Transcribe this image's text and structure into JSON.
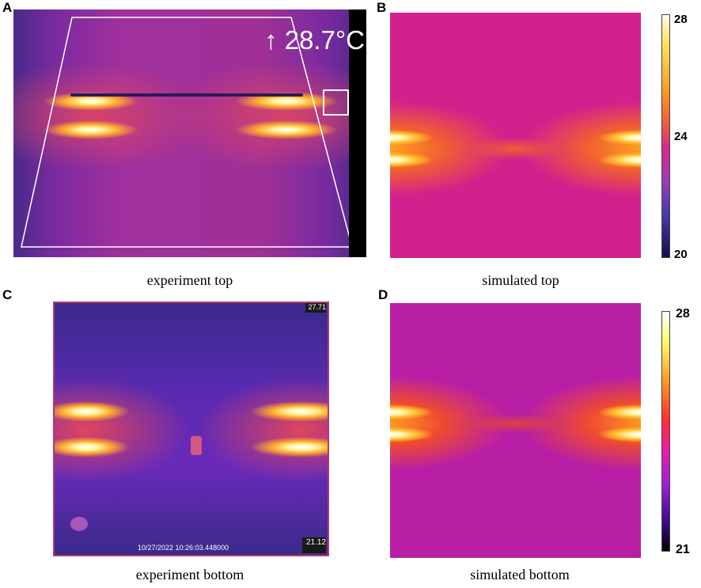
{
  "panels": {
    "a": {
      "letter": "A",
      "readout": "↑ 28.7°C"
    },
    "b": {
      "letter": "B"
    },
    "c": {
      "letter": "C",
      "timestamp": "10/27/2022 10:26:03.448000",
      "corner_top": "27.71",
      "corner_bottom": "21.12"
    },
    "d": {
      "letter": "D"
    }
  },
  "captions": {
    "a": "experiment top",
    "b": "simulated top",
    "c": "experiment bottom",
    "d": "simulated bottom"
  },
  "colorbars": {
    "top": {
      "max": "28",
      "mid": "24",
      "min": "20"
    },
    "bottom": {
      "max": "28",
      "min": "21"
    }
  },
  "colors": {
    "hot": "#ffffff",
    "warm": "#ffa020",
    "background_top": "#d4208c",
    "background_bottom": "#b81fa5"
  }
}
